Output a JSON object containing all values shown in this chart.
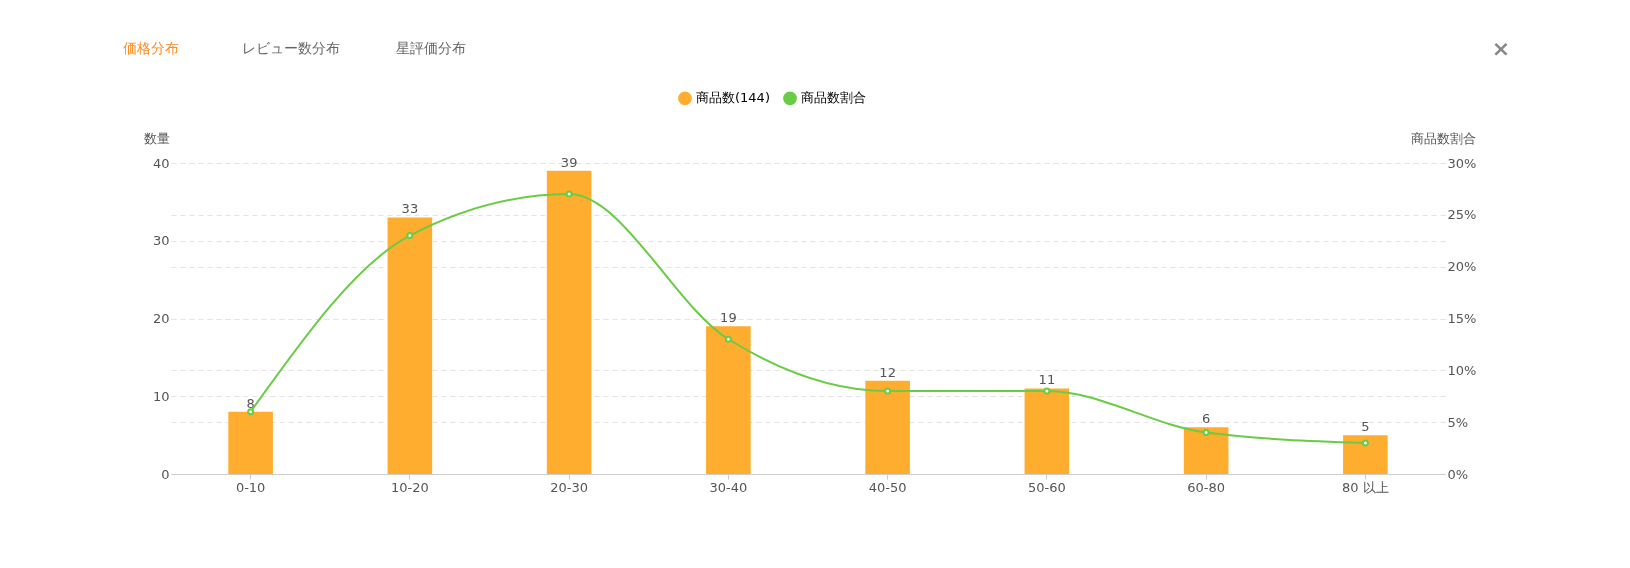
{
  "chart_data": {
    "type": "bar",
    "annotations": [
      "価格分布",
      "レビュー数分布",
      "星評価分布",
      "×"
    ],
    "categories": [
      "0-10",
      "10-20",
      "20-30",
      "30-40",
      "40-50",
      "50-60",
      "60-80",
      "80 以上"
    ],
    "series": [
      {
        "name": "商品数(144)",
        "color": "#ffad2f",
        "values": [
          8,
          33,
          39,
          19,
          12,
          11,
          6,
          5
        ],
        "value_labels": [
          "8",
          "33",
          "39",
          "19",
          "12",
          "11",
          "6",
          "5"
        ]
      },
      {
        "name": "商品数割合",
        "type": "line",
        "axis": "y2",
        "color": "#6acb45",
        "values": [
          6,
          23,
          27,
          13,
          8,
          8,
          4,
          3
        ]
      }
    ],
    "ylabel": "数量",
    "y2label": "商品数割合",
    "ylim": [
      0,
      40
    ],
    "yticks": [
      0,
      10,
      20,
      30,
      40
    ],
    "y2lim": [
      0,
      30
    ],
    "y2ticks": [
      {
        "value": 0,
        "label": "0%"
      },
      {
        "value": 5,
        "label": "5%"
      },
      {
        "value": 10,
        "label": "10%"
      },
      {
        "value": 15,
        "label": "15%"
      },
      {
        "value": 20,
        "label": "20%"
      },
      {
        "value": 25,
        "label": "25%"
      },
      {
        "value": 30,
        "label": "30%"
      }
    ],
    "grid": true,
    "legend": "top",
    "marker": "circle",
    "line_style": "solid"
  }
}
